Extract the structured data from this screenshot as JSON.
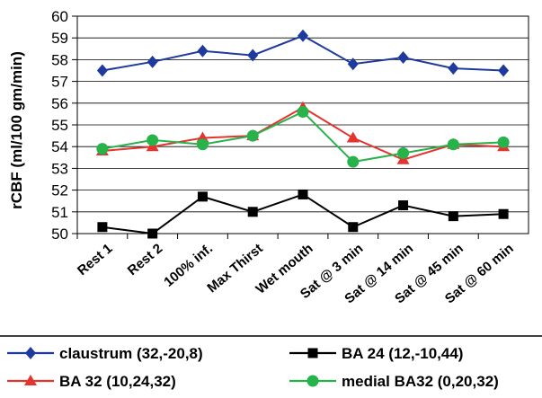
{
  "chart_data": {
    "type": "line",
    "ylabel": "rCBF (ml/100 gm/min)",
    "xlabel": "",
    "categories": [
      "Rest 1",
      "Rest 2",
      "100% inf.",
      "Max Thirst",
      "Wet mouth",
      "Sat @ 3 min",
      "Sat @ 14 min",
      "Sat @ 45 min",
      "Sat @ 60 min"
    ],
    "ylim": [
      50,
      60
    ],
    "yticks": [
      "50",
      "51",
      "52",
      "53",
      "54",
      "55",
      "56",
      "57",
      "58",
      "59",
      "60"
    ],
    "grid": true,
    "legend_position": "bottom",
    "series": [
      {
        "name": "claustrum (32,-20,8)",
        "color": "#1f3a9e",
        "marker": "diamond",
        "values": [
          57.5,
          57.9,
          58.4,
          58.2,
          59.1,
          57.8,
          58.1,
          57.6,
          57.5
        ]
      },
      {
        "name": "BA 24 (12,-10,44)",
        "color": "#000000",
        "marker": "square",
        "values": [
          50.3,
          50.0,
          51.7,
          51.0,
          51.8,
          50.3,
          51.3,
          50.8,
          50.9
        ]
      },
      {
        "name": "BA 32 (10,24,32)",
        "color": "#e3342f",
        "marker": "triangle",
        "values": [
          53.8,
          54.0,
          54.4,
          54.5,
          55.8,
          54.4,
          53.4,
          54.1,
          54.0
        ]
      },
      {
        "name": "medial BA32 (0,20,32)",
        "color": "#27b24a",
        "marker": "circle",
        "values": [
          53.9,
          54.3,
          54.1,
          54.5,
          55.6,
          53.3,
          53.7,
          54.1,
          54.2
        ]
      }
    ]
  }
}
